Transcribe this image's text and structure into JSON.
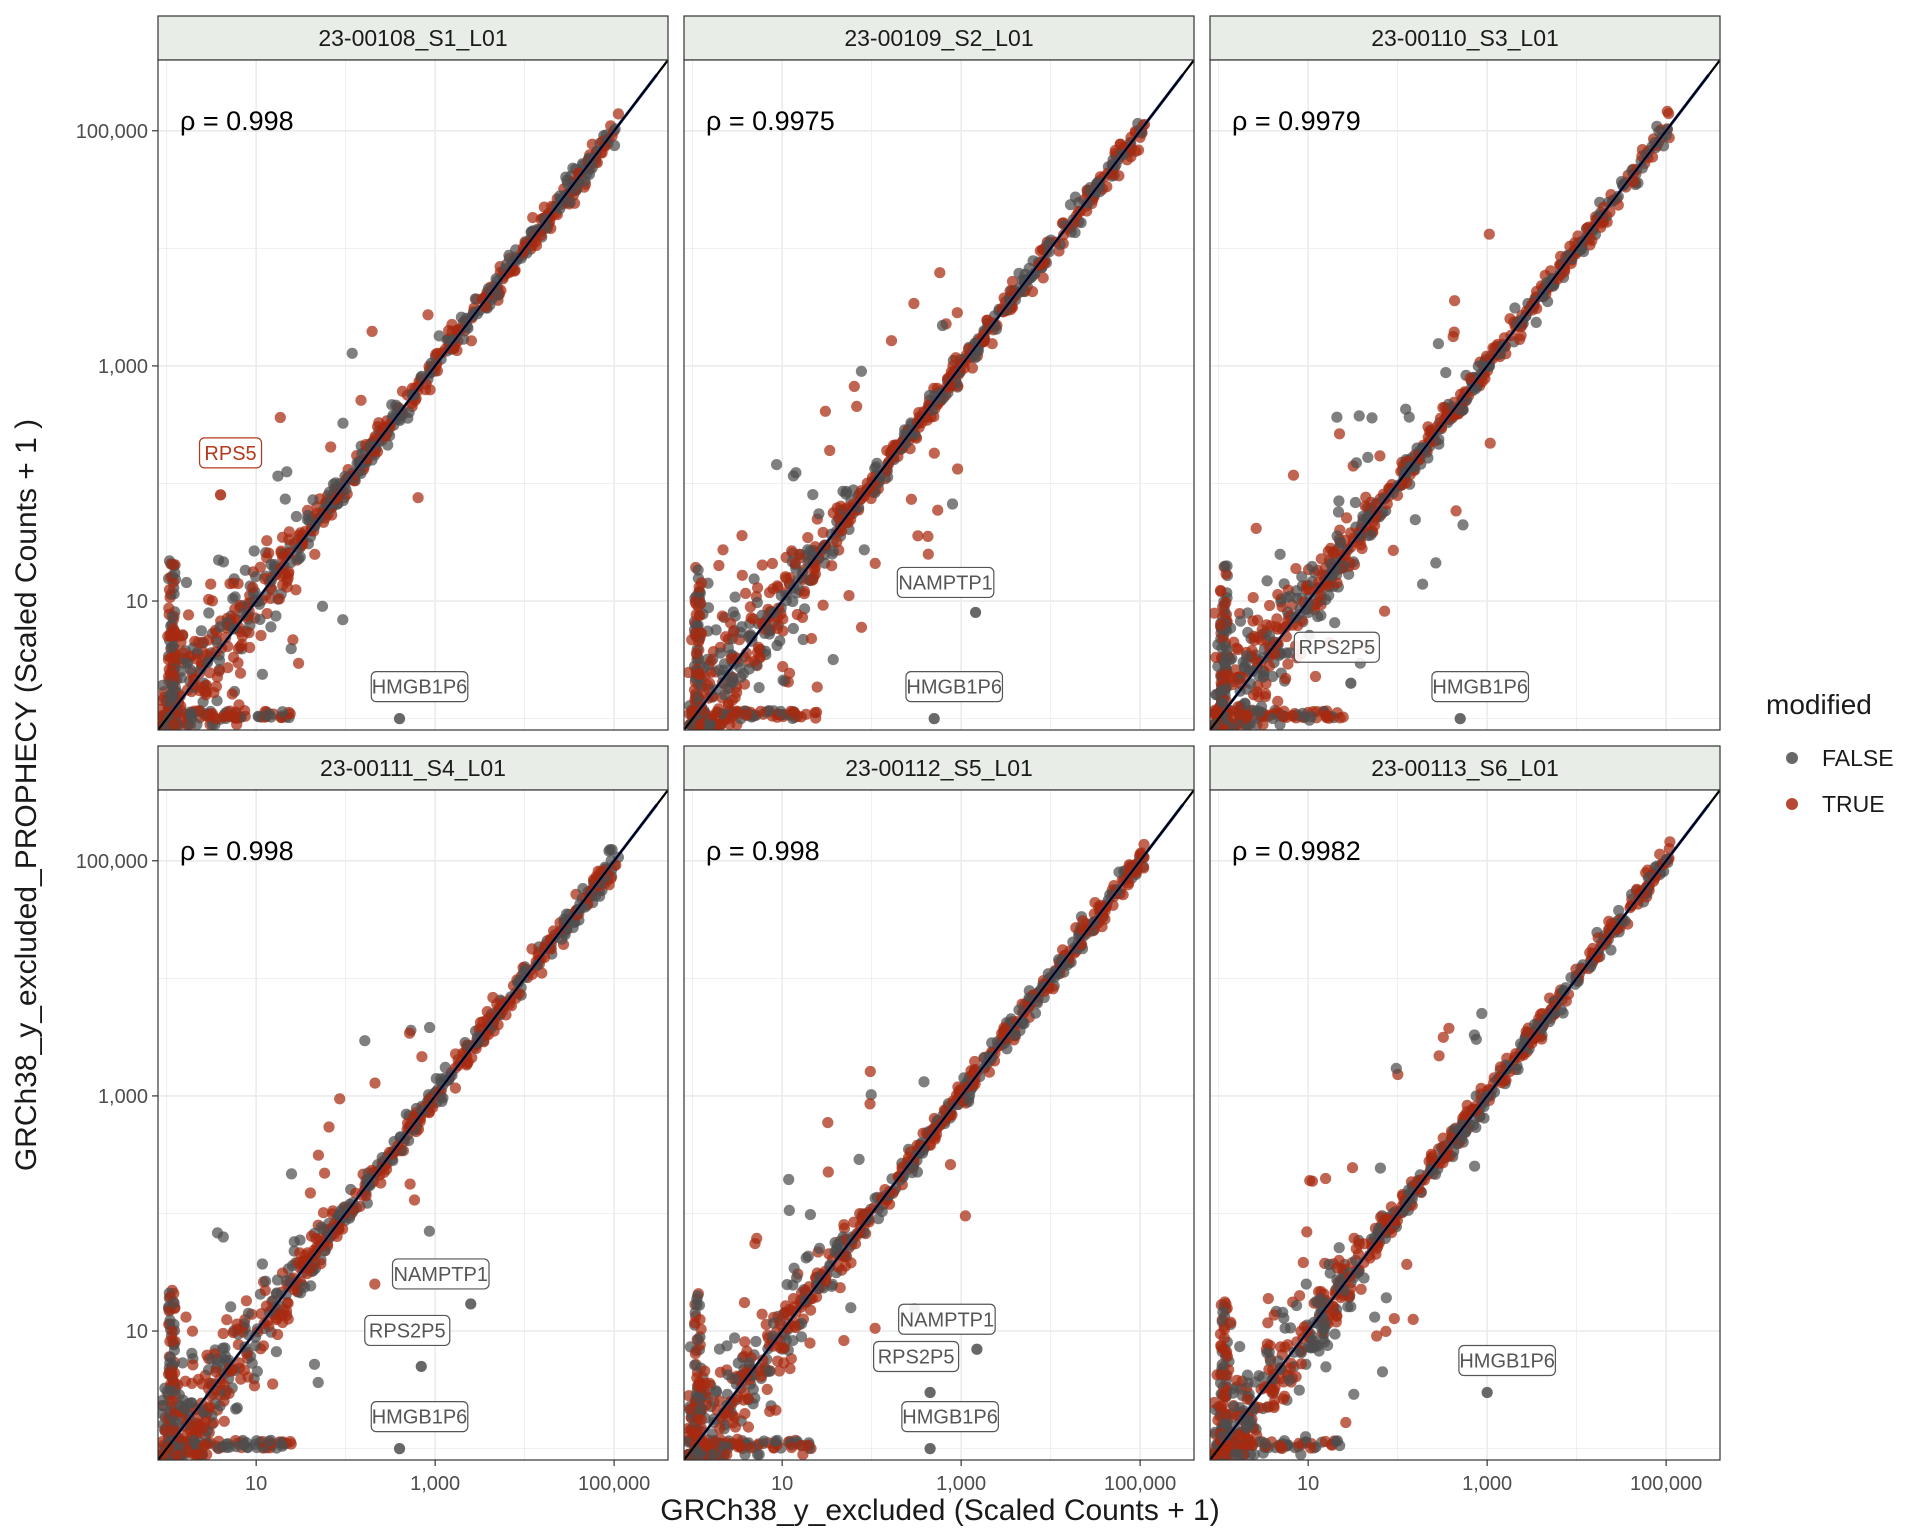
{
  "chart_data": {
    "type": "scatter",
    "scale": "log10",
    "xlabel": "GRCh38_y_excluded (Scaled Counts + 1)",
    "ylabel": "GRCh38_y_excluded_PROPHECY (Scaled Counts + 1 )",
    "xlim": [
      0.8,
      400000
    ],
    "ylim": [
      0.8,
      400000
    ],
    "x_ticks": [
      {
        "value": 10,
        "label": "10"
      },
      {
        "value": 1000,
        "label": "1,000"
      },
      {
        "value": 100000,
        "label": "100,000"
      }
    ],
    "y_ticks": [
      {
        "value": 10,
        "label": "10"
      },
      {
        "value": 1000,
        "label": "1,000"
      },
      {
        "value": 100000,
        "label": "100,000"
      }
    ],
    "reference_line": "y = x",
    "legend": {
      "title": "modified",
      "entries": [
        {
          "label": "FALSE",
          "color": "#4d4d4d"
        },
        {
          "label": "TRUE",
          "color": "#a8290f"
        }
      ]
    },
    "colors": {
      "false_points": "#4d4d4d",
      "true_points": "#a8290f",
      "fit_line": "#2f55d4",
      "strip_bg": "#e8ede7",
      "grid": "#ebebeb"
    },
    "panels": [
      {
        "sample": "23-00108_S1_L01",
        "rho_label": "ρ = 0.998",
        "labeled_genes": [
          {
            "gene": "RPS5",
            "modified": true,
            "x": 4,
            "y": 80
          },
          {
            "gene": "HMGB1P6",
            "modified": false,
            "x": 400,
            "y": 1
          }
        ]
      },
      {
        "sample": "23-00109_S2_L01",
        "rho_label": "ρ = 0.9975",
        "labeled_genes": [
          {
            "gene": "NAMPTP1",
            "modified": false,
            "x": 1450,
            "y": 8
          },
          {
            "gene": "HMGB1P6",
            "modified": false,
            "x": 500,
            "y": 1
          }
        ]
      },
      {
        "sample": "23-00110_S3_L01",
        "rho_label": "ρ = 0.9979",
        "labeled_genes": [
          {
            "gene": "RPS2P5",
            "modified": false,
            "x": 30,
            "y": 2
          },
          {
            "gene": "HMGB1P6",
            "modified": false,
            "x": 500,
            "y": 1
          }
        ]
      },
      {
        "sample": "23-00111_S4_L01",
        "rho_label": "ρ = 0.998",
        "labeled_genes": [
          {
            "gene": "NAMPTP1",
            "modified": false,
            "x": 2500,
            "y": 17
          },
          {
            "gene": "RPS2P5",
            "modified": false,
            "x": 700,
            "y": 5
          },
          {
            "gene": "HMGB1P6",
            "modified": false,
            "x": 400,
            "y": 1
          }
        ]
      },
      {
        "sample": "23-00112_S5_L01",
        "rho_label": "ρ = 0.998",
        "labeled_genes": [
          {
            "gene": "NAMPTP1",
            "modified": false,
            "x": 1500,
            "y": 7
          },
          {
            "gene": "RPS2P5",
            "modified": false,
            "x": 450,
            "y": 3
          },
          {
            "gene": "HMGB1P6",
            "modified": false,
            "x": 450,
            "y": 1
          }
        ]
      },
      {
        "sample": "23-00113_S6_L01",
        "rho_label": "ρ = 0.9982",
        "labeled_genes": [
          {
            "gene": "HMGB1P6",
            "modified": false,
            "x": 1000,
            "y": 3
          }
        ]
      }
    ]
  }
}
